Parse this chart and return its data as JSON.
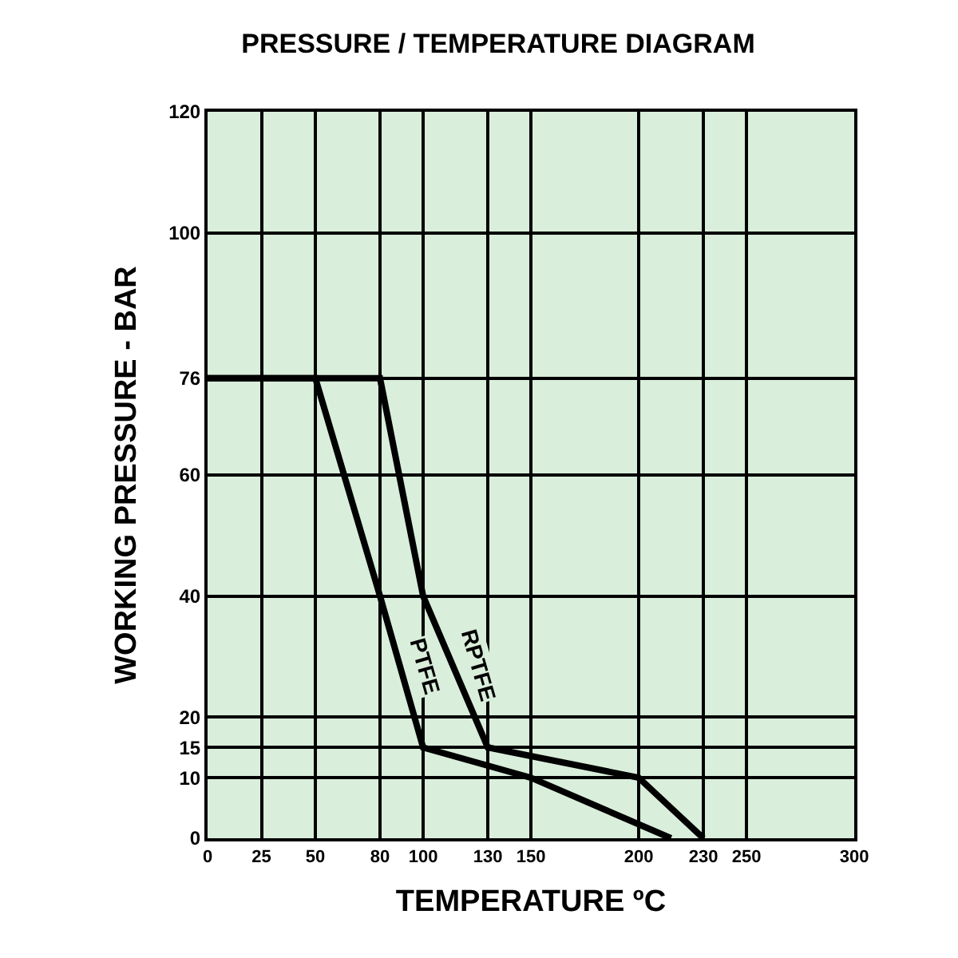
{
  "chart_data": {
    "type": "line",
    "title": "PRESSURE / TEMPERATURE DIAGRAM",
    "xlabel": "TEMPERATURE ºC",
    "ylabel": "WORKING PRESSURE - BAR",
    "series": [
      {
        "name": "PTFE",
        "color": "#000000",
        "x": [
          0,
          50,
          80,
          100,
          150,
          215
        ],
        "values": [
          76,
          76,
          40,
          15,
          10,
          0
        ]
      },
      {
        "name": "RPTFE",
        "color": "#000000",
        "x": [
          0,
          80,
          100,
          130,
          200,
          230
        ],
        "values": [
          76,
          76,
          40,
          15,
          10,
          0
        ]
      }
    ],
    "xlim": [
      0,
      300
    ],
    "xticks": [
      0,
      25,
      50,
      80,
      100,
      130,
      150,
      200,
      230,
      250,
      300
    ],
    "ylim": [
      0,
      120
    ],
    "yticks": [
      0,
      10,
      15,
      20,
      40,
      60,
      76,
      100,
      120
    ],
    "grid": true,
    "marker": "none",
    "line_style": "solid",
    "legend": false
  }
}
